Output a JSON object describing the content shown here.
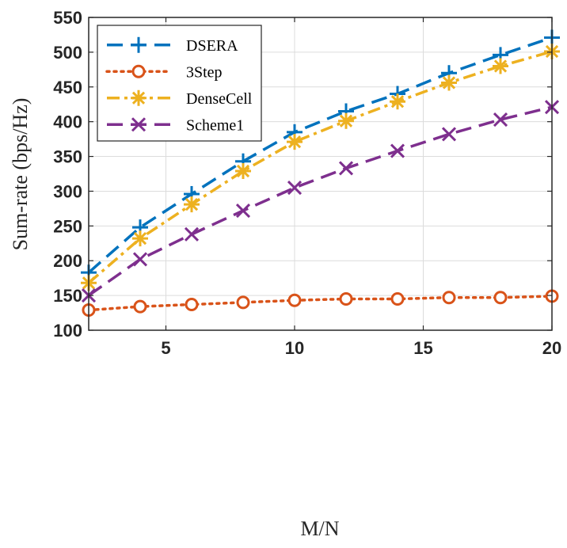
{
  "chart_data": {
    "type": "line",
    "xlabel": "M/N",
    "ylabel": "Sum-rate (bps/Hz)",
    "xlim": [
      2,
      20
    ],
    "ylim": [
      100,
      550
    ],
    "xticks": [
      5,
      10,
      15,
      20
    ],
    "yticks": [
      100,
      150,
      200,
      250,
      300,
      350,
      400,
      450,
      500,
      550
    ],
    "grid": true,
    "legend_position": "top-left",
    "x": [
      2,
      4,
      6,
      8,
      10,
      12,
      14,
      16,
      18,
      20
    ],
    "series": [
      {
        "name": "DSERA",
        "color": "#0072BD",
        "line_style": "dashed",
        "marker": "plus",
        "values": [
          183,
          248,
          296,
          343,
          385,
          415,
          440,
          470,
          496,
          521
        ]
      },
      {
        "name": "3Step",
        "color": "#D95319",
        "line_style": "dotted",
        "marker": "circle",
        "values": [
          129,
          134,
          137,
          140,
          143,
          145,
          145,
          147,
          147,
          149
        ]
      },
      {
        "name": "DenseCell",
        "color": "#EDB120",
        "line_style": "dash-dot",
        "marker": "asterisk",
        "values": [
          168,
          232,
          281,
          329,
          371,
          401,
          429,
          456,
          480,
          501
        ]
      },
      {
        "name": "Scheme1",
        "color": "#7E2F8E",
        "line_style": "dashed",
        "marker": "cross",
        "values": [
          150,
          202,
          238,
          272,
          305,
          333,
          358,
          382,
          403,
          421
        ]
      }
    ]
  }
}
